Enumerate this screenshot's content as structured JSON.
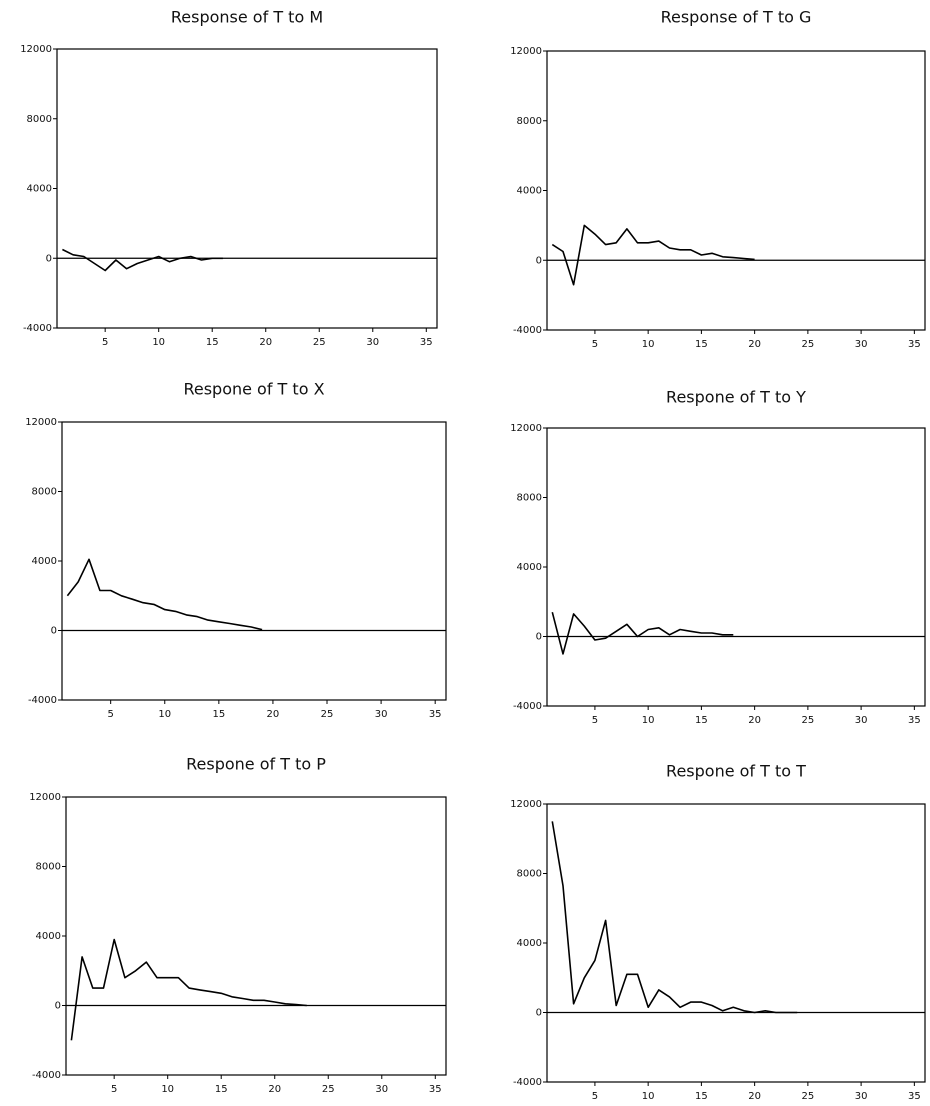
{
  "chart_data": [
    {
      "type": "line",
      "title": "Response of T to M",
      "x": [
        1,
        2,
        3,
        4,
        5,
        6,
        7,
        8,
        9,
        10,
        11,
        12,
        13,
        14,
        15,
        16
      ],
      "values": [
        500,
        200,
        100,
        -300,
        -700,
        -100,
        -600,
        -300,
        -100,
        100,
        -200,
        0,
        100,
        -100,
        0,
        0
      ],
      "color": "#000000",
      "xlim": [
        0.5,
        36
      ],
      "ylim": [
        -4000,
        12000
      ],
      "xticks": [
        5,
        10,
        15,
        20,
        25,
        30,
        35
      ],
      "yticks": [
        -4000,
        0,
        4000,
        8000,
        12000
      ],
      "zero_line": true
    },
    {
      "type": "line",
      "title": "Response of T to G",
      "x": [
        1,
        2,
        3,
        4,
        5,
        6,
        7,
        8,
        9,
        10,
        11,
        12,
        13,
        14,
        15,
        16,
        17,
        18,
        19,
        20
      ],
      "values": [
        900,
        500,
        -1400,
        2000,
        1500,
        900,
        1000,
        1800,
        1000,
        1000,
        1100,
        700,
        600,
        600,
        300,
        400,
        200,
        150,
        100,
        50
      ],
      "color": "#000000",
      "xlim": [
        0.5,
        36
      ],
      "ylim": [
        -4000,
        12000
      ],
      "xticks": [
        5,
        10,
        15,
        20,
        25,
        30,
        35
      ],
      "yticks": [
        -4000,
        0,
        4000,
        8000,
        12000
      ],
      "zero_line": true
    },
    {
      "type": "line",
      "title": "Respone of T to X",
      "x": [
        1,
        2,
        3,
        4,
        5,
        6,
        7,
        8,
        9,
        10,
        11,
        12,
        13,
        14,
        15,
        16,
        17,
        18,
        19
      ],
      "values": [
        2000,
        2800,
        4100,
        2300,
        2300,
        2000,
        1800,
        1600,
        1500,
        1200,
        1100,
        900,
        800,
        600,
        500,
        400,
        300,
        200,
        50
      ],
      "color": "#000000",
      "xlim": [
        0.5,
        36
      ],
      "ylim": [
        -4000,
        12000
      ],
      "xticks": [
        5,
        10,
        15,
        20,
        25,
        30,
        35
      ],
      "yticks": [
        -4000,
        0,
        4000,
        8000,
        12000
      ],
      "zero_line": true
    },
    {
      "type": "line",
      "title": "Respone of T to Y",
      "x": [
        1,
        2,
        3,
        4,
        5,
        6,
        7,
        8,
        9,
        10,
        11,
        12,
        13,
        14,
        15,
        16,
        17,
        18
      ],
      "values": [
        1400,
        -1000,
        1300,
        600,
        -200,
        -100,
        300,
        700,
        0,
        400,
        500,
        100,
        400,
        300,
        200,
        200,
        100,
        100
      ],
      "color": "#000000",
      "xlim": [
        0.5,
        36
      ],
      "ylim": [
        -4000,
        12000
      ],
      "xticks": [
        5,
        10,
        15,
        20,
        25,
        30,
        35
      ],
      "yticks": [
        -4000,
        0,
        4000,
        8000,
        12000
      ],
      "zero_line": true
    },
    {
      "type": "line",
      "title": "Respone of T to P",
      "x": [
        1,
        2,
        3,
        4,
        5,
        6,
        7,
        8,
        9,
        10,
        11,
        12,
        13,
        14,
        15,
        16,
        17,
        18,
        19,
        20,
        21,
        22,
        23
      ],
      "values": [
        -2000,
        2800,
        1000,
        1000,
        3800,
        1600,
        2000,
        2500,
        1600,
        1600,
        1600,
        1000,
        900,
        800,
        700,
        500,
        400,
        300,
        300,
        200,
        100,
        50,
        0
      ],
      "color": "#000000",
      "xlim": [
        0.5,
        36
      ],
      "ylim": [
        -4000,
        12000
      ],
      "xticks": [
        5,
        10,
        15,
        20,
        25,
        30,
        35
      ],
      "yticks": [
        -4000,
        0,
        4000,
        8000,
        12000
      ],
      "zero_line": true
    },
    {
      "type": "line",
      "title": "Respone of T to T",
      "x": [
        1,
        2,
        3,
        4,
        5,
        6,
        7,
        8,
        9,
        10,
        11,
        12,
        13,
        14,
        15,
        16,
        17,
        18,
        19,
        20,
        21,
        22,
        23,
        24
      ],
      "values": [
        11000,
        7300,
        500,
        2000,
        3000,
        5300,
        400,
        2200,
        2200,
        300,
        1300,
        900,
        300,
        600,
        600,
        400,
        100,
        300,
        100,
        0,
        100,
        0,
        0,
        0
      ],
      "color": "#000000",
      "xlim": [
        0.5,
        36
      ],
      "ylim": [
        -4000,
        12000
      ],
      "xticks": [
        5,
        10,
        15,
        20,
        25,
        30,
        35
      ],
      "yticks": [
        -4000,
        0,
        4000,
        8000,
        12000
      ],
      "zero_line": true
    }
  ]
}
